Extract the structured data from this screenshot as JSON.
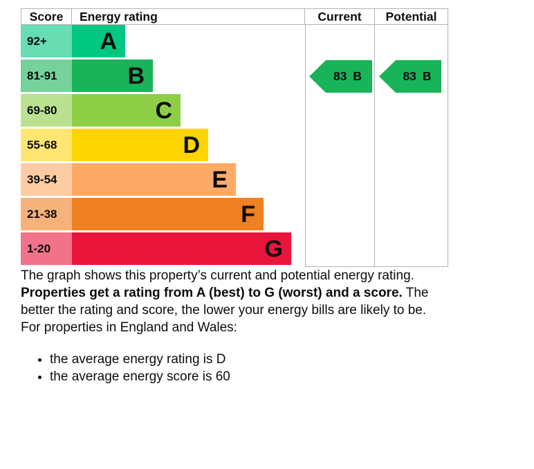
{
  "chart_data": {
    "type": "bar",
    "title": "Energy rating",
    "categories": [
      "A",
      "B",
      "C",
      "D",
      "E",
      "F",
      "G"
    ],
    "score_ranges": [
      "92+",
      "81-91",
      "69-80",
      "55-68",
      "39-54",
      "21-38",
      "1-20"
    ],
    "band_colors": [
      "#00c781",
      "#19b459",
      "#8dce46",
      "#ffd500",
      "#fcaa65",
      "#ef8023",
      "#e9153b"
    ],
    "legend_position": "columns right of bars",
    "current": {
      "score": 83,
      "rating": "B"
    },
    "potential": {
      "score": 83,
      "rating": "B"
    }
  },
  "chart": {
    "headers": {
      "score": "Score",
      "rating": "Energy rating",
      "current": "Current",
      "potential": "Potential"
    },
    "bands": [
      {
        "range": "92+",
        "letter": "A",
        "color": "#00c781",
        "tint": "#66ddb3"
      },
      {
        "range": "81-91",
        "letter": "B",
        "color": "#19b459",
        "tint": "#75d29b"
      },
      {
        "range": "69-80",
        "letter": "C",
        "color": "#8dce46",
        "tint": "#bae190"
      },
      {
        "range": "55-68",
        "letter": "D",
        "color": "#ffd500",
        "tint": "#ffe672"
      },
      {
        "range": "39-54",
        "letter": "E",
        "color": "#fcaa65",
        "tint": "#fdcca2"
      },
      {
        "range": "21-38",
        "letter": "F",
        "color": "#ef8023",
        "tint": "#f5b27b"
      },
      {
        "range": "1-20",
        "letter": "G",
        "color": "#e9153b",
        "tint": "#f17289"
      }
    ],
    "current": {
      "score": "83",
      "letter": "B",
      "band_index": 1
    },
    "potential": {
      "score": "83",
      "letter": "B",
      "band_index": 1
    },
    "arrow_color": "#19b459",
    "border_color": "#b1b4b6",
    "text_color": "#0b0c0c"
  },
  "text": {
    "intro": "The graph shows this property’s current and potential energy rating.",
    "explainer_bold": "Properties get a rating from A (best) to G (worst) and a score.",
    "explainer_rest": "The better the rating and score, the lower your energy bills are likely to be.",
    "location_lead": "For properties in England and Wales:",
    "bullets": [
      "the average energy rating is D",
      "the average energy score is 60"
    ]
  }
}
